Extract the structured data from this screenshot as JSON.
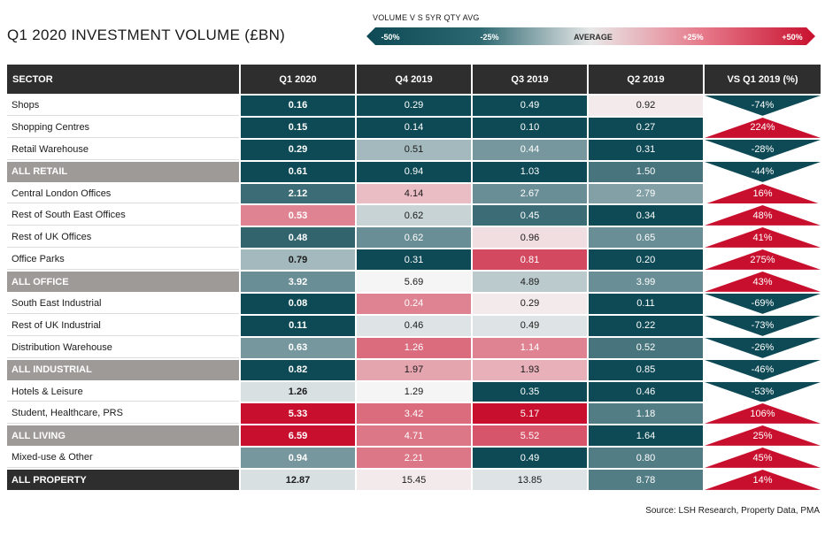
{
  "title": "Q1 2020 INVESTMENT VOLUME (£BN)",
  "legend": {
    "caption": "VOLUME V S 5YR QTY AVG",
    "labels": [
      "-50%",
      "-25%",
      "AVERAGE",
      "+25%",
      "+50%"
    ],
    "colors": {
      "teal": "#0e4a55",
      "neutral": "#e8e8e8",
      "red": "#c8102e"
    }
  },
  "source": "Source: LSH Research, Property Data, PMA",
  "chart_data": {
    "type": "table",
    "title": "Q1 2020 INVESTMENT VOLUME (£BN)",
    "columns": [
      "SECTOR",
      "Q1 2020",
      "Q4 2019",
      "Q3 2019",
      "Q2 2019",
      "VS Q1 2019 (%)"
    ],
    "rows": [
      {
        "sector": "Shops",
        "total": false,
        "values": [
          "0.16",
          "0.29",
          "0.49",
          "0.92"
        ],
        "shades": [
          -1.0,
          -1.0,
          -1.0,
          0.05
        ],
        "vs": "-74%",
        "dir": "down"
      },
      {
        "sector": "Shopping Centres",
        "total": false,
        "values": [
          "0.15",
          "0.14",
          "0.10",
          "0.27"
        ],
        "shades": [
          -1.0,
          -1.0,
          -1.0,
          -1.0
        ],
        "vs": "224%",
        "dir": "up"
      },
      {
        "sector": "Retail Warehouse",
        "total": false,
        "values": [
          "0.29",
          "0.51",
          "0.44",
          "0.31"
        ],
        "shades": [
          -1.0,
          -0.35,
          -0.55,
          -1.0
        ],
        "vs": "-28%",
        "dir": "down"
      },
      {
        "sector": "ALL RETAIL",
        "total": true,
        "values": [
          "0.61",
          "0.94",
          "1.03",
          "1.50"
        ],
        "shades": [
          -1.0,
          -1.0,
          -1.0,
          -0.75
        ],
        "vs": "-44%",
        "dir": "down"
      },
      {
        "sector": "Central London Offices",
        "total": false,
        "values": [
          "2.12",
          "4.14",
          "2.67",
          "2.79"
        ],
        "shades": [
          -0.8,
          0.25,
          -0.6,
          -0.5
        ],
        "vs": "16%",
        "dir": "up"
      },
      {
        "sector": "Rest of South East Offices",
        "total": false,
        "values": [
          "0.53",
          "0.62",
          "0.45",
          "0.34"
        ],
        "shades": [
          0.5,
          -0.2,
          -0.8,
          -1.0
        ],
        "vs": "48%",
        "dir": "up"
      },
      {
        "sector": "Rest of UK Offices",
        "total": false,
        "values": [
          "0.48",
          "0.62",
          "0.96",
          "0.65"
        ],
        "shades": [
          -0.85,
          -0.6,
          0.1,
          -0.6
        ],
        "vs": "41%",
        "dir": "up"
      },
      {
        "sector": "Office Parks",
        "total": false,
        "values": [
          "0.79",
          "0.31",
          "0.81",
          "0.20"
        ],
        "shades": [
          -0.35,
          -1.0,
          0.75,
          -1.0
        ],
        "vs": "275%",
        "dir": "up"
      },
      {
        "sector": "ALL OFFICE",
        "total": true,
        "values": [
          "3.92",
          "5.69",
          "4.89",
          "3.99"
        ],
        "shades": [
          -0.6,
          0.0,
          -0.25,
          -0.6
        ],
        "vs": "43%",
        "dir": "up"
      },
      {
        "sector": "South East Industrial",
        "total": false,
        "values": [
          "0.08",
          "0.24",
          "0.29",
          "0.11"
        ],
        "shades": [
          -1.0,
          0.5,
          0.05,
          -1.0
        ],
        "vs": "-69%",
        "dir": "down"
      },
      {
        "sector": "Rest of UK Industrial",
        "total": false,
        "values": [
          "0.11",
          "0.46",
          "0.49",
          "0.22"
        ],
        "shades": [
          -1.0,
          -0.1,
          -0.1,
          -1.0
        ],
        "vs": "-73%",
        "dir": "down"
      },
      {
        "sector": "Distribution Warehouse",
        "total": false,
        "values": [
          "0.63",
          "1.26",
          "1.14",
          "0.52"
        ],
        "shades": [
          -0.55,
          0.6,
          0.5,
          -0.75
        ],
        "vs": "-26%",
        "dir": "down"
      },
      {
        "sector": "ALL INDUSTRIAL",
        "total": true,
        "values": [
          "0.82",
          "1.97",
          "1.93",
          "0.85"
        ],
        "shades": [
          -1.0,
          0.35,
          0.3,
          -1.0
        ],
        "vs": "-46%",
        "dir": "down"
      },
      {
        "sector": "Hotels & Leisure",
        "total": false,
        "values": [
          "1.26",
          "1.29",
          "0.35",
          "0.46"
        ],
        "shades": [
          -0.12,
          0.0,
          -1.0,
          -1.0
        ],
        "vs": "-53%",
        "dir": "down"
      },
      {
        "sector": "Student, Healthcare, PRS",
        "total": false,
        "values": [
          "5.33",
          "3.42",
          "5.17",
          "1.18"
        ],
        "shades": [
          1.0,
          0.6,
          1.0,
          -0.7
        ],
        "vs": "106%",
        "dir": "up"
      },
      {
        "sector": "ALL LIVING",
        "total": true,
        "values": [
          "6.59",
          "4.71",
          "5.52",
          "1.64"
        ],
        "shades": [
          1.0,
          0.55,
          0.7,
          -1.0
        ],
        "vs": "25%",
        "dir": "up"
      },
      {
        "sector": "Mixed-use & Other",
        "total": false,
        "values": [
          "0.94",
          "2.21",
          "0.49",
          "0.80"
        ],
        "shades": [
          -0.55,
          0.55,
          -1.0,
          -0.7
        ],
        "vs": "45%",
        "dir": "up"
      },
      {
        "sector": "ALL PROPERTY",
        "total": true,
        "grand": true,
        "values": [
          "12.87",
          "15.45",
          "13.85",
          "8.78"
        ],
        "shades": [
          -0.12,
          0.05,
          -0.1,
          -0.7
        ],
        "vs": "14%",
        "dir": "up"
      }
    ]
  }
}
